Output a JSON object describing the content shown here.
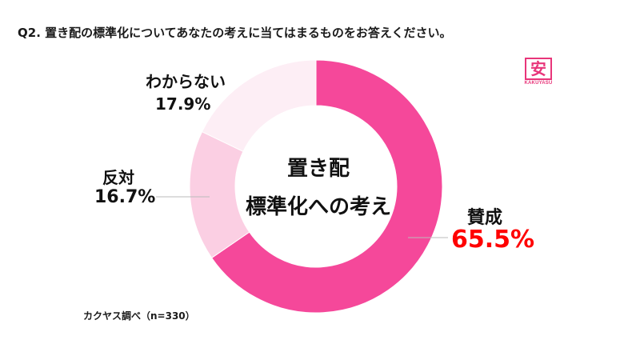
{
  "question": "Q2. 置き配の標準化についてあなたの考えに当てはまるものをお答えください。",
  "logo": {
    "char": "安",
    "text": "KAKUYASU"
  },
  "source_note": "カクヤス調べ（n=330）",
  "colors": {
    "agree": "#f5489a",
    "disagree": "#fbcfe3",
    "unknown": "#fdeef5",
    "agree_value_text": "#ff0000",
    "logo": "#e8357a"
  },
  "chart_data": {
    "type": "pie",
    "donut": true,
    "center_label": [
      "置き配",
      "標準化への考え"
    ],
    "slices": [
      {
        "name": "賛成",
        "value": 65.5,
        "label": "65.5%"
      },
      {
        "name": "反対",
        "value": 16.7,
        "label": "16.7%"
      },
      {
        "name": "わからない",
        "value": 17.9,
        "label": "17.9%"
      }
    ]
  }
}
